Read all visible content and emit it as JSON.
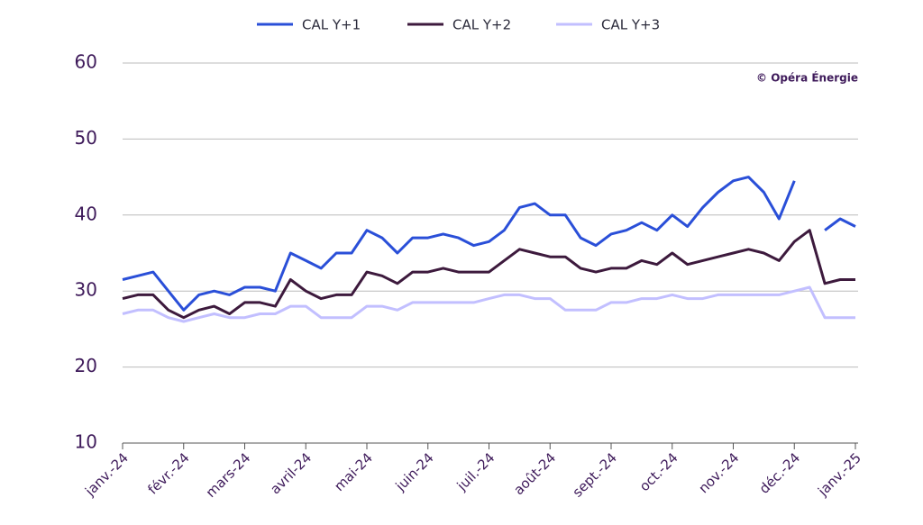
{
  "chart_data": {
    "type": "line",
    "annotation": "© Opéra Énergie",
    "categories": [
      "janv.-24",
      null,
      null,
      null,
      "févr.-24",
      null,
      null,
      null,
      "mars-24",
      null,
      null,
      null,
      "avril-24",
      null,
      null,
      null,
      "mai-24",
      null,
      null,
      null,
      "juin-24",
      null,
      null,
      null,
      "juil.-24",
      null,
      null,
      null,
      "août-24",
      null,
      null,
      null,
      "sept.-24",
      null,
      null,
      null,
      "oct.-24",
      null,
      null,
      null,
      "nov.-24",
      null,
      null,
      null,
      "déc.-24",
      null,
      null,
      null,
      "janv.-25"
    ],
    "series": [
      {
        "name": "CAL Y+1",
        "color": "#2a4fd8",
        "values": [
          31.5,
          32,
          32.5,
          30,
          27.5,
          29.5,
          30,
          29.5,
          30.5,
          30.5,
          30,
          35,
          34,
          33,
          35,
          35,
          38,
          37,
          35,
          37,
          37,
          37.5,
          37,
          36,
          36.5,
          38,
          41,
          41.5,
          40,
          40,
          37,
          36,
          37.5,
          38,
          39,
          38,
          40,
          38.5,
          41,
          43,
          44.5,
          45,
          43,
          39.5,
          44.5,
          null,
          38,
          39.5,
          38.5
        ]
      },
      {
        "name": "CAL Y+2",
        "color": "#3d1a3d",
        "values": [
          29,
          29.5,
          29.5,
          27.5,
          26.5,
          27.5,
          28,
          27,
          28.5,
          28.5,
          28,
          31.5,
          30,
          29,
          29.5,
          29.5,
          32.5,
          32,
          31,
          32.5,
          32.5,
          33,
          32.5,
          32.5,
          32.5,
          34,
          35.5,
          35,
          34.5,
          34.5,
          33,
          32.5,
          33,
          33,
          34,
          33.5,
          35,
          33.5,
          34,
          34.5,
          35,
          35.5,
          35,
          34,
          36.5,
          38,
          31,
          31.5,
          31.5
        ]
      },
      {
        "name": "CAL Y+3",
        "color": "#c2bfff",
        "values": [
          27,
          27.5,
          27.5,
          26.5,
          26,
          26.5,
          27,
          26.5,
          26.5,
          27,
          27,
          28,
          28,
          26.5,
          26.5,
          26.5,
          28,
          28,
          27.5,
          28.5,
          28.5,
          28.5,
          28.5,
          28.5,
          29,
          29.5,
          29.5,
          29,
          29,
          27.5,
          27.5,
          27.5,
          28.5,
          28.5,
          29,
          29,
          29.5,
          29,
          29,
          29.5,
          29.5,
          29.5,
          29.5,
          29.5,
          30,
          30.5,
          26.5,
          26.5,
          26.5
        ]
      }
    ],
    "ylim": [
      10,
      60
    ],
    "yticks": [
      10,
      20,
      30,
      40,
      50,
      60
    ],
    "grid": true,
    "legend": "top"
  }
}
